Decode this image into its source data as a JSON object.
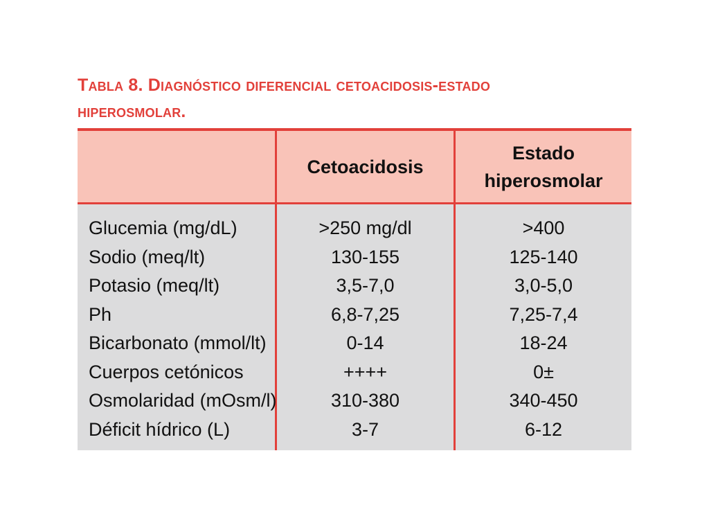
{
  "title": {
    "line1": "Tabla 8. Diagnóstico diferencial cetoacidosis-estado",
    "line2": "hiperosmolar."
  },
  "table": {
    "headers": [
      "",
      "Cetoacidosis",
      "Estado hiperosmolar"
    ],
    "header_lines": {
      "col2": [
        "Estado",
        "hiperosmolar"
      ]
    },
    "rows": [
      [
        "Glucemia (mg/dL)",
        ">250 mg/dl",
        ">400"
      ],
      [
        "Sodio (meq/lt)",
        "130-155",
        "125-140"
      ],
      [
        "Potasio (meq/lt)",
        "3,5-7,0",
        "3,0-5,0"
      ],
      [
        "Ph",
        "6,8-7,25",
        "7,25-7,4"
      ],
      [
        "Bicarbonato (mmol/lt)",
        "0-14",
        "18-24"
      ],
      [
        "Cuerpos cetónicos",
        "++++",
        "0±"
      ],
      [
        "Osmolaridad (mOsm/l)",
        "310-380",
        "340-450"
      ],
      [
        "Déficit hídrico (L)",
        "3-7",
        "6-12"
      ]
    ]
  },
  "colors": {
    "accent": "#e2403a",
    "header_bg": "#f9c3b8",
    "body_bg": "#dcdcdd"
  }
}
